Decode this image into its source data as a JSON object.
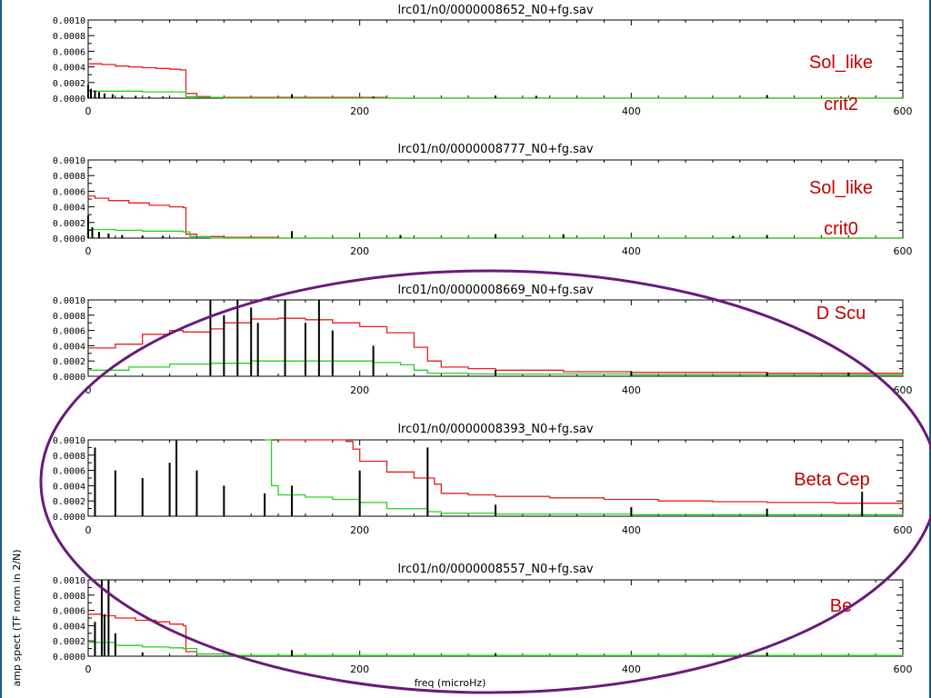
{
  "colors": {
    "spectrum": "#000000",
    "red_curve": "#e8201c",
    "green_curve": "#22d422",
    "annotation": "#c00000",
    "ellipse": "#6a1a7a",
    "frame": "#1a5a8a"
  },
  "chart_data": [
    {
      "type": "line",
      "title": "lrc01/n0/0000008652_N0+fg.sav",
      "annotations": [
        "Sol_like",
        "crit2"
      ],
      "xlim": [
        0,
        600
      ],
      "ylim": [
        0,
        0.001
      ],
      "xticks": [
        "0",
        "200",
        "400",
        "600"
      ],
      "yticks": [
        "0.0000",
        "0.0002",
        "0.0004",
        "0.0006",
        "0.0008",
        "0.0010"
      ],
      "series": [
        {
          "color": "red",
          "x": [
            0,
            10,
            20,
            30,
            40,
            50,
            60,
            68,
            72,
            80,
            90,
            120,
            220,
            400,
            600
          ],
          "y": [
            0.00044,
            0.00043,
            0.00041,
            0.0004,
            0.00039,
            0.00038,
            0.00037,
            0.00036,
            6e-05,
            2e-05,
            1e-05,
            1e-05,
            0.0,
            0.0,
            0.0
          ]
        },
        {
          "color": "green",
          "x": [
            0,
            20,
            40,
            60,
            68,
            72,
            80,
            100,
            600
          ],
          "y": [
            9e-05,
            9e-05,
            8e-05,
            8e-05,
            8e-05,
            2e-05,
            1e-05,
            0.0,
            0.0
          ]
        },
        {
          "color": "black",
          "x": [
            0,
            2,
            5,
            8,
            12,
            18,
            25,
            35,
            45,
            55,
            150,
            210,
            300,
            330,
            500
          ],
          "y": [
            0.00017,
            0.00012,
            0.0001,
            8e-05,
            6e-05,
            5e-05,
            3e-05,
            3e-05,
            2e-05,
            2e-05,
            5e-05,
            2e-05,
            3e-05,
            3e-05,
            4e-05
          ]
        }
      ]
    },
    {
      "type": "line",
      "title": "lrc01/n0/0000008777_N0+fg.sav",
      "annotations": [
        "Sol_like",
        "crit0"
      ],
      "xlim": [
        0,
        600
      ],
      "ylim": [
        0,
        0.001
      ],
      "xticks": [
        "0",
        "200",
        "400",
        "600"
      ],
      "yticks": [
        "0.0000",
        "0.0002",
        "0.0004",
        "0.0006",
        "0.0008",
        "0.0010"
      ],
      "series": [
        {
          "color": "red",
          "x": [
            0,
            5,
            15,
            30,
            45,
            60,
            70,
            72,
            80,
            100,
            140,
            600
          ],
          "y": [
            0.00054,
            0.00051,
            0.00048,
            0.00045,
            0.00042,
            0.0004,
            0.00039,
            5e-05,
            2e-05,
            1e-05,
            0.0,
            0.0
          ]
        },
        {
          "color": "green",
          "x": [
            0,
            20,
            40,
            60,
            70,
            75,
            90,
            600
          ],
          "y": [
            0.00011,
            0.0001,
            9e-05,
            9e-05,
            8e-05,
            2e-05,
            0.0,
            0.0
          ]
        },
        {
          "color": "black",
          "x": [
            0,
            3,
            8,
            15,
            25,
            40,
            55,
            150,
            230,
            300,
            350,
            475,
            500
          ],
          "y": [
            0.00029,
            0.00014,
            8e-05,
            6e-05,
            4e-05,
            3e-05,
            3e-05,
            9e-05,
            4e-05,
            5e-05,
            5e-05,
            3e-05,
            4e-05
          ]
        }
      ]
    },
    {
      "type": "line",
      "title": "lrc01/n0/0000008669_N0+fg.sav",
      "annotations": [
        "D Scu"
      ],
      "xlim": [
        0,
        600
      ],
      "ylim": [
        0,
        0.001
      ],
      "xticks": [
        "0",
        "200",
        "400",
        "600"
      ],
      "yticks": [
        "0.0000",
        "0.0002",
        "0.0004",
        "0.0006",
        "0.0008",
        "0.0010"
      ],
      "series": [
        {
          "color": "red",
          "x": [
            0,
            20,
            40,
            60,
            70,
            90,
            100,
            120,
            140,
            160,
            180,
            200,
            220,
            240,
            250,
            260,
            280,
            300,
            350,
            400,
            500,
            600
          ],
          "y": [
            0.00037,
            0.00042,
            0.00055,
            0.0006,
            0.00058,
            0.00062,
            0.0007,
            0.00075,
            0.00076,
            0.00074,
            0.0007,
            0.00065,
            0.00057,
            0.00038,
            0.0002,
            0.00012,
            0.0001,
            8e-05,
            6e-05,
            5e-05,
            4e-05,
            4e-05
          ]
        },
        {
          "color": "green",
          "x": [
            0,
            30,
            60,
            90,
            120,
            150,
            180,
            210,
            230,
            240,
            250,
            280,
            400,
            600
          ],
          "y": [
            8e-05,
            0.00012,
            0.00016,
            0.00017,
            0.0002,
            0.0002,
            0.0002,
            0.00018,
            0.00015,
            8e-05,
            4e-05,
            3e-05,
            2e-05,
            1e-05
          ]
        },
        {
          "color": "black",
          "x": [
            90,
            100,
            110,
            120,
            125,
            145,
            160,
            170,
            180,
            210,
            300,
            400,
            500,
            560
          ],
          "y": [
            0.001,
            0.0008,
            0.001,
            0.0009,
            0.0007,
            0.001,
            0.0007,
            0.001,
            0.0006,
            0.0004,
            8e-05,
            6e-05,
            5e-05,
            5e-05
          ]
        }
      ]
    },
    {
      "type": "line",
      "title": "lrc01/n0/0000008393_N0+fg.sav",
      "annotations": [
        "Beta Cep"
      ],
      "xlim": [
        0,
        600
      ],
      "ylim": [
        0,
        0.001
      ],
      "xticks": [
        "0",
        "200",
        "400",
        "600"
      ],
      "yticks": [
        "0.0000",
        "0.0002",
        "0.0004",
        "0.0006",
        "0.0008",
        "0.0010"
      ],
      "series": [
        {
          "color": "red",
          "x": [
            140,
            160,
            190,
            195,
            200,
            220,
            240,
            255,
            260,
            280,
            300,
            340,
            380,
            420,
            460,
            500,
            550,
            600
          ],
          "y": [
            0.001,
            0.001,
            0.00098,
            0.00088,
            0.00072,
            0.00058,
            0.0005,
            0.00042,
            0.0003,
            0.00028,
            0.00026,
            0.00024,
            0.00022,
            0.0002,
            0.00019,
            0.00018,
            0.00017,
            0.00016
          ]
        },
        {
          "color": "green",
          "x": [
            130,
            135,
            140,
            160,
            180,
            200,
            220,
            250,
            260,
            300,
            400,
            600
          ],
          "y": [
            0.001,
            0.0004,
            0.00028,
            0.00025,
            0.00022,
            0.00018,
            0.0001,
            6e-05,
            4e-05,
            3e-05,
            2e-05,
            1e-05
          ]
        },
        {
          "color": "black",
          "x": [
            5,
            20,
            40,
            60,
            65,
            80,
            100,
            130,
            150,
            200,
            250,
            300,
            400,
            500,
            570
          ],
          "y": [
            0.0009,
            0.0006,
            0.0005,
            0.0007,
            0.001,
            0.0006,
            0.0004,
            0.0003,
            0.0004,
            0.0006,
            0.0009,
            0.00015,
            0.00012,
            0.0001,
            0.00032
          ]
        }
      ]
    },
    {
      "type": "line",
      "title": "lrc01/n0/0000008557_N0+fg.sav",
      "annotations": [
        "Be"
      ],
      "xlabel": "freq (microHz)",
      "ylabel": "amp spect (TF norm in 2/N)",
      "xlim": [
        0,
        600
      ],
      "ylim": [
        0,
        0.001
      ],
      "xticks": [
        "0",
        "200",
        "400",
        "600"
      ],
      "yticks": [
        "0.0000",
        "0.0002",
        "0.0004",
        "0.0006",
        "0.0008",
        "0.0010"
      ],
      "series": [
        {
          "color": "red",
          "x": [
            0,
            10,
            20,
            35,
            50,
            60,
            70,
            72,
            80,
            100,
            600
          ],
          "y": [
            0.00055,
            0.00053,
            0.0005,
            0.00047,
            0.00045,
            0.00042,
            0.0004,
            6e-05,
            3e-05,
            1e-05,
            1e-05
          ]
        },
        {
          "color": "green",
          "x": [
            0,
            20,
            40,
            60,
            70,
            80,
            100,
            600
          ],
          "y": [
            0.00018,
            0.00014,
            0.00012,
            0.00011,
            0.0001,
            3e-05,
            1e-05,
            0.0
          ]
        },
        {
          "color": "black",
          "x": [
            5,
            10,
            12,
            15,
            20,
            40,
            150,
            300,
            500
          ],
          "y": [
            0.00045,
            0.001,
            0.00055,
            0.001,
            0.0003,
            5e-05,
            8e-05,
            4e-05,
            5e-05
          ]
        }
      ]
    }
  ]
}
